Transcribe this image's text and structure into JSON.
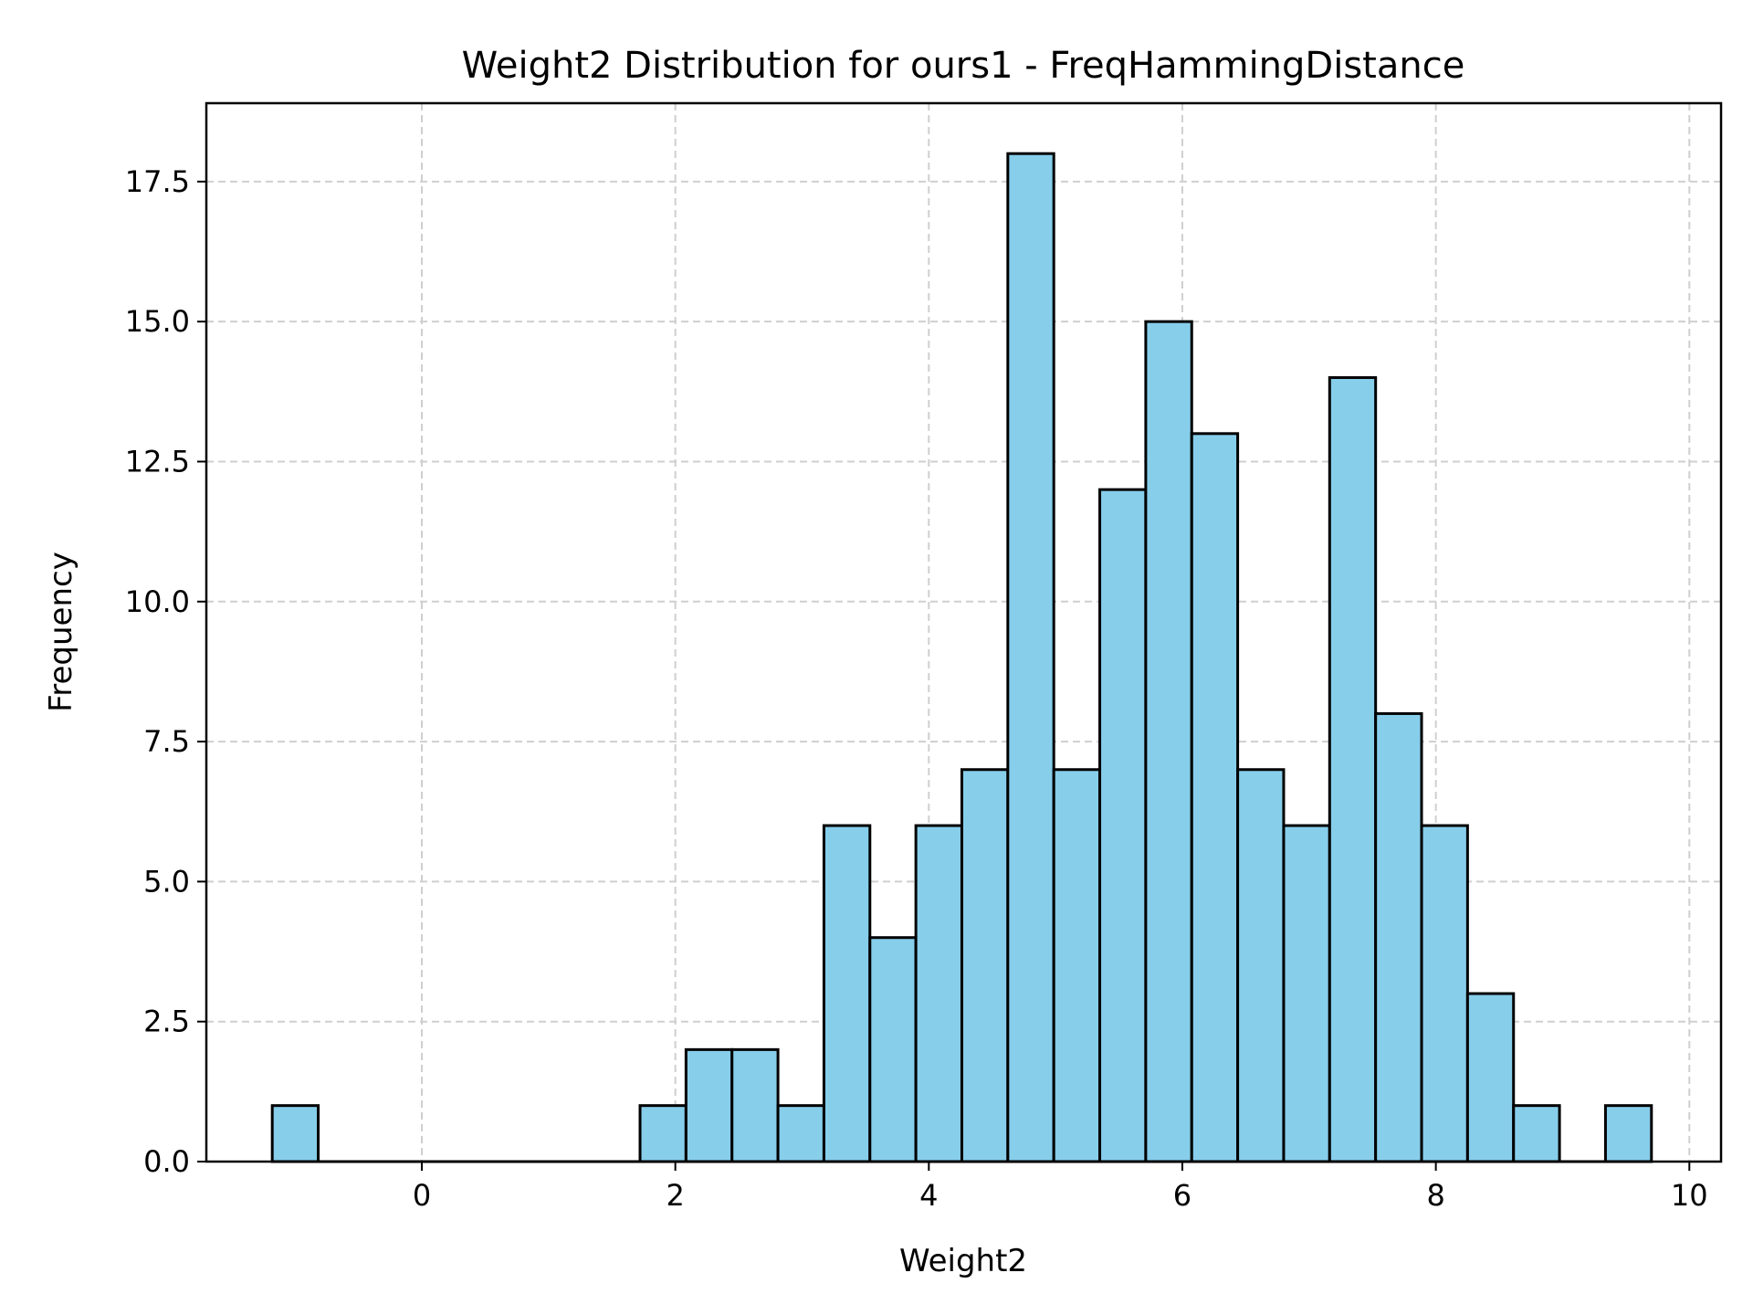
{
  "chart_data": {
    "type": "histogram",
    "title": "Weight2 Distribution for ours1 - FreqHammingDistance",
    "xlabel": "Weight2",
    "ylabel": "Frequency",
    "xlim": [
      -1.7,
      10.25
    ],
    "ylim": [
      0,
      18.9
    ],
    "x_ticks": [
      0,
      2,
      4,
      6,
      8,
      10
    ],
    "x_tick_labels": [
      "0",
      "2",
      "4",
      "6",
      "8",
      "10"
    ],
    "y_ticks": [
      0,
      2.5,
      5,
      7.5,
      10,
      12.5,
      15,
      17.5
    ],
    "y_tick_labels": [
      "0.0",
      "2.5",
      "5.0",
      "7.5",
      "10.0",
      "12.5",
      "15.0",
      "17.5"
    ],
    "grid": true,
    "bar_color": "#87CEEB",
    "edge_color": "#000000",
    "bin_start": -1.18,
    "bin_width": 0.3627,
    "counts": [
      1,
      0,
      0,
      0,
      0,
      0,
      0,
      0,
      1,
      2,
      2,
      1,
      6,
      4,
      6,
      7,
      18,
      7,
      12,
      15,
      13,
      7,
      6,
      14,
      8,
      6,
      3,
      1,
      0,
      1
    ]
  }
}
